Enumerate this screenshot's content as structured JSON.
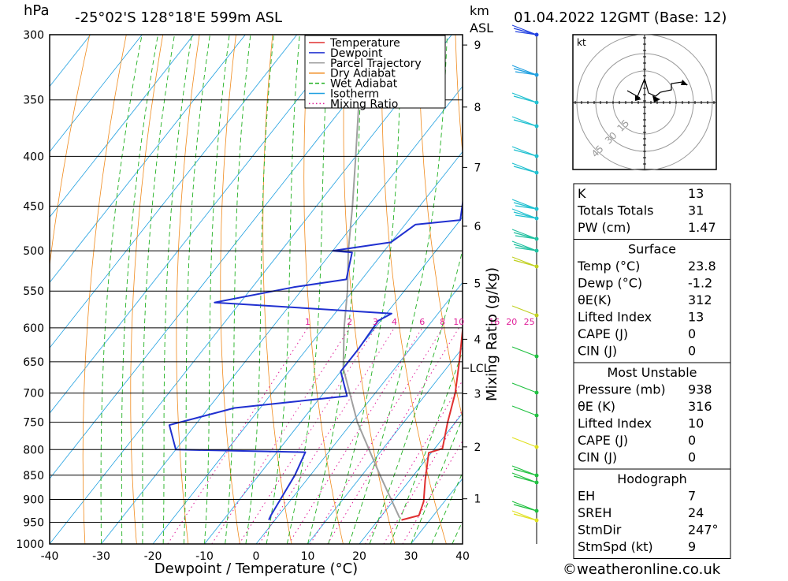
{
  "header": {
    "location": "-25°02'S  128°18'E  599m  ASL",
    "datetime": "01.04.2022  12GMT  (Base: 12)",
    "pressure_unit": "hPa",
    "height_unit_1": "km",
    "height_unit_2": "ASL"
  },
  "credit": "©weatheronline.co.uk",
  "chart_data": {
    "type": "line",
    "subtype": "skew-T log-P",
    "xlabel": "Dewpoint / Temperature (°C)",
    "ylabel": "hPa",
    "mixing_ratio_label": "Mixing Ratio (g/kg)",
    "x_ticks": [
      -40,
      -30,
      -20,
      -10,
      0,
      10,
      20,
      30,
      40
    ],
    "pressure_levels": [
      300,
      350,
      400,
      450,
      500,
      550,
      600,
      650,
      700,
      750,
      800,
      850,
      900,
      950,
      1000
    ],
    "km_ticks": [
      1,
      2,
      3,
      4,
      5,
      6,
      7,
      8,
      9
    ],
    "lcl_label": "LCL",
    "lcl_pressure": 660,
    "mixing_ratio_values": [
      "1",
      "2",
      "3",
      "4",
      "6",
      "8",
      "10",
      "16",
      "20",
      "25"
    ],
    "legend": [
      "Temperature",
      "Dewpoint",
      "Parcel Trajectory",
      "Dry Adiabat",
      "Wet Adiabat",
      "Isotherm",
      "Mixing Ratio"
    ],
    "colors": {
      "temperature": "#e03030",
      "dewpoint": "#2030d0",
      "parcel": "#a0a0a0",
      "dry_adiabat": "#f08a1c",
      "wet_adiabat": "#20b020",
      "isotherm": "#20a0e0",
      "mixing_ratio": "#e0209a"
    },
    "temperature": [
      {
        "p": 945,
        "t": 24.5
      },
      {
        "p": 935,
        "t": 27.2
      },
      {
        "p": 905,
        "t": 26.0
      },
      {
        "p": 860,
        "t": 23.0
      },
      {
        "p": 806,
        "t": 19.5
      },
      {
        "p": 798,
        "t": 21.5
      },
      {
        "p": 750,
        "t": 18.5
      },
      {
        "p": 700,
        "t": 15.5
      },
      {
        "p": 650,
        "t": 11.5
      },
      {
        "p": 600,
        "t": 7.0
      },
      {
        "p": 560,
        "t": 4.0
      },
      {
        "p": 540,
        "t": 2.0
      },
      {
        "p": 500,
        "t": -3.0
      },
      {
        "p": 480,
        "t": -6.0
      },
      {
        "p": 470,
        "t": -8.0
      },
      {
        "p": 400,
        "t": -14.0
      },
      {
        "p": 350,
        "t": -24.0
      },
      {
        "p": 300,
        "t": -34.0
      }
    ],
    "dewpoint": [
      {
        "p": 945,
        "t": -1.2
      },
      {
        "p": 935,
        "t": -1.5
      },
      {
        "p": 850,
        "t": -3.0
      },
      {
        "p": 805,
        "t": -4.5
      },
      {
        "p": 800,
        "t": -30.0
      },
      {
        "p": 755,
        "t": -35.0
      },
      {
        "p": 725,
        "t": -25.0
      },
      {
        "p": 705,
        "t": -5.0
      },
      {
        "p": 665,
        "t": -10.0
      },
      {
        "p": 630,
        "t": -10.0
      },
      {
        "p": 590,
        "t": -10.5
      },
      {
        "p": 580,
        "t": -9.0
      },
      {
        "p": 565,
        "t": -45.0
      },
      {
        "p": 545,
        "t": -32.0
      },
      {
        "p": 535,
        "t": -23.0
      },
      {
        "p": 502,
        "t": -26.0
      },
      {
        "p": 500,
        "t": -30.0
      },
      {
        "p": 490,
        "t": -20.0
      },
      {
        "p": 470,
        "t": -18.0
      },
      {
        "p": 465,
        "t": -10.0
      },
      {
        "p": 400,
        "t": -18.0
      },
      {
        "p": 350,
        "t": -27.0
      },
      {
        "p": 300,
        "t": -36.0
      }
    ],
    "parcel": [
      {
        "p": 940,
        "t": 23.8
      },
      {
        "p": 850,
        "t": 13.5
      },
      {
        "p": 750,
        "t": 1.0
      },
      {
        "p": 660,
        "t": -10.0
      },
      {
        "p": 600,
        "t": -16.0
      },
      {
        "p": 550,
        "t": -21.0
      },
      {
        "p": 500,
        "t": -27.0
      },
      {
        "p": 450,
        "t": -33.0
      },
      {
        "p": 400,
        "t": -40.0
      },
      {
        "p": 350,
        "t": -48.0
      },
      {
        "p": 300,
        "t": -57.0
      }
    ]
  },
  "hodograph": {
    "unit": "kt",
    "rings": [
      "15",
      "30",
      "45"
    ]
  },
  "indices": {
    "rows": [
      {
        "label": "K",
        "value": "13"
      },
      {
        "label": "Totals Totals",
        "value": "31"
      },
      {
        "label": "PW (cm)",
        "value": "1.47"
      }
    ]
  },
  "surface": {
    "title": "Surface",
    "rows": [
      {
        "label": "Temp (°C)",
        "value": "23.8"
      },
      {
        "label": "Dewp (°C)",
        "value": "-1.2"
      },
      {
        "label": "θE(K)",
        "value": "312"
      },
      {
        "label": "Lifted Index",
        "value": "13"
      },
      {
        "label": "CAPE (J)",
        "value": "0"
      },
      {
        "label": "CIN (J)",
        "value": "0"
      }
    ]
  },
  "most_unstable": {
    "title": "Most Unstable",
    "rows": [
      {
        "label": "Pressure (mb)",
        "value": "938"
      },
      {
        "label": "θE (K)",
        "value": "316"
      },
      {
        "label": "Lifted Index",
        "value": "10"
      },
      {
        "label": "CAPE (J)",
        "value": "0"
      },
      {
        "label": "CIN (J)",
        "value": "0"
      }
    ]
  },
  "hodograph_stats": {
    "title": "Hodograph",
    "rows": [
      {
        "label": "EH",
        "value": "7"
      },
      {
        "label": "SREH",
        "value": "24"
      },
      {
        "label": "StmDir",
        "value": "247°"
      },
      {
        "label": "StmSpd (kt)",
        "value": "9"
      }
    ]
  }
}
